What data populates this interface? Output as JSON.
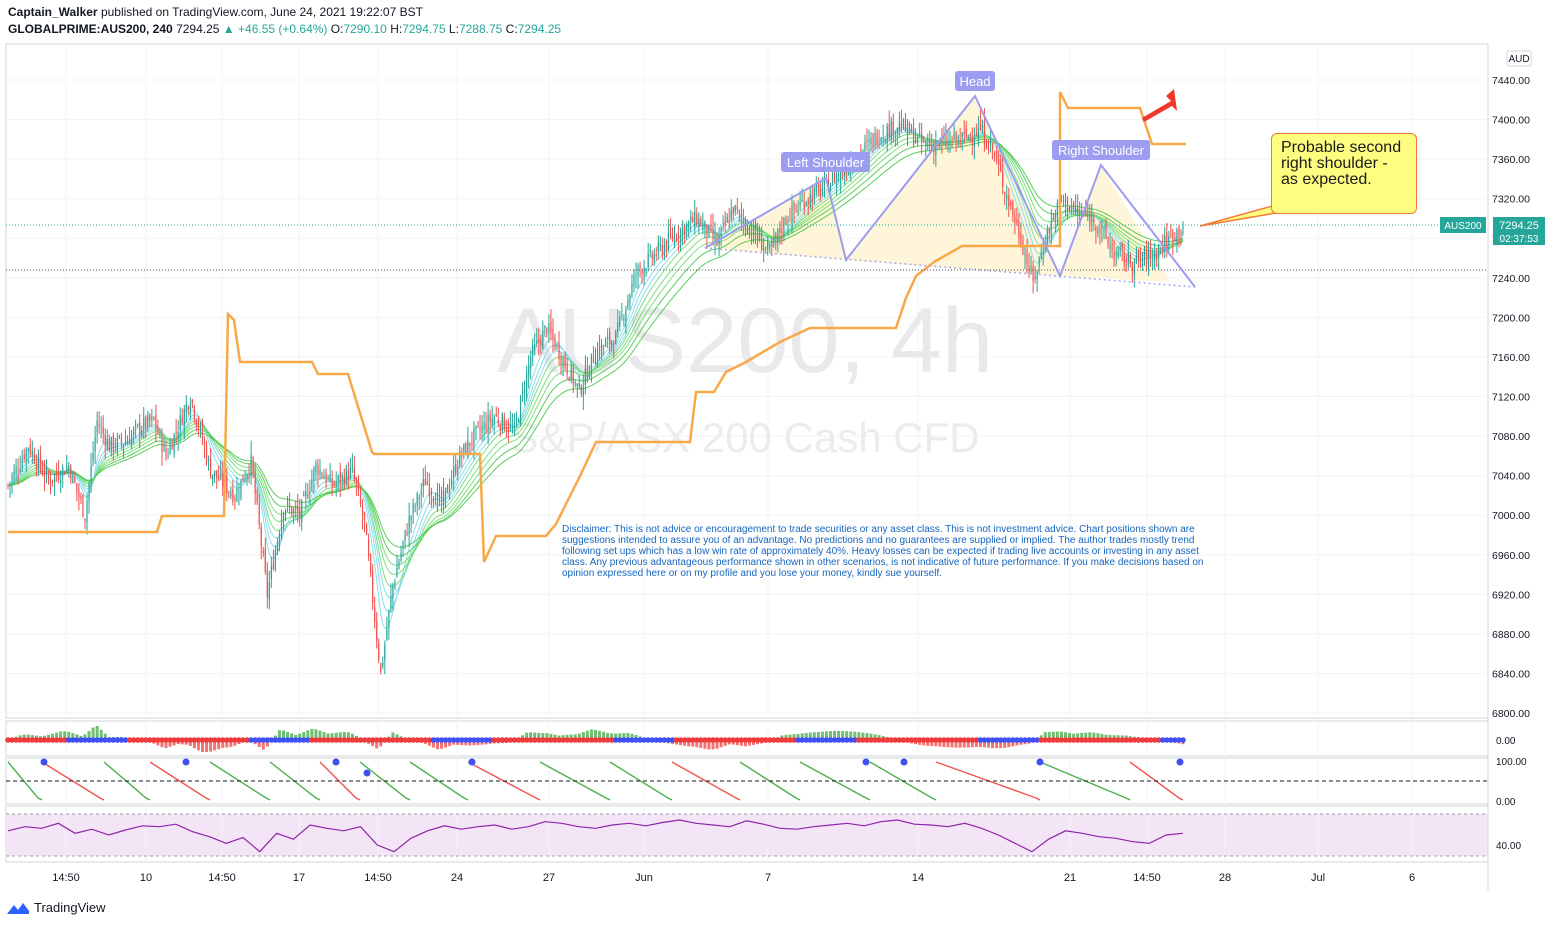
{
  "header": {
    "author": "Captain_Walker",
    "published": "published on TradingView.com, June 24, 2021 19:22:07 BST",
    "symbol": "GLOBALPRIME:AUS200, 240",
    "last": "7294.25",
    "change": "+46.55 (+0.64%)",
    "o_label": "O:",
    "o": "7290.10",
    "h_label": "H:",
    "h": "7294.75",
    "l_label": "L:",
    "l": "7288.75",
    "c_label": "C:",
    "c": "7294.25"
  },
  "watermark": {
    "symbol": "AUS200, 4h",
    "desc": "S&P/ASX 200 Cash CFD"
  },
  "currency": "AUD",
  "price_tag": {
    "name": "AUS200",
    "price": "7294.25",
    "countdown": "02:37:53"
  },
  "annotations": {
    "left_shoulder": "Left Shoulder",
    "head": "Head",
    "right_shoulder": "Right Shoulder",
    "callout": "Probable second right shoulder - as expected.",
    "disclaimer": "Disclaimer: This is not advice or encouragement to trade securities or any asset class. This is not investment advice. Chart positions shown are suggestions intended to assure you of an advantage. No predictions and no guarantees are supplied or implied. The author trades mostly trend following set ups which has a low win rate of approximately 40%. Heavy losses can be expected if trading live accounts or investing in any asset class. Any previous advantageous performance shown in other scenarios, is not indicative of future performance.  If you make decisions based on opinion expressed here or on my profile and you lose your money, kindly sue yourself."
  },
  "footer": {
    "brand": "TradingView"
  },
  "colors": {
    "up": "#26a69a",
    "down": "#ef5350",
    "stop_line": "#f7a94a",
    "pattern": "#9c9cf0",
    "pattern_fill": "#fff3cc",
    "arrow": "#f0392b",
    "osc_purple": "#8e24aa",
    "rsi_bg": "#f3e5f5"
  },
  "chart_data": [
    {
      "type": "candlestick",
      "title": "AUS200, 4h",
      "y_ticks": [
        "7440.00",
        "7400.00",
        "7360.00",
        "7320.00",
        "7280.00",
        "7240.00",
        "7200.00",
        "7160.00",
        "7120.00",
        "7080.00",
        "7040.00",
        "7000.00",
        "6960.00",
        "6920.00",
        "6880.00",
        "6840.00",
        "6800.00"
      ],
      "x_ticks": [
        "14:50",
        "10",
        "14:50",
        "17",
        "14:50",
        "24",
        "27",
        "Jun",
        "7",
        "14",
        "21",
        "14:50",
        "28",
        "Jul",
        "6"
      ],
      "ylim": [
        6790,
        7460
      ],
      "close_path": [
        [
          0,
          7030
        ],
        [
          10,
          7070
        ],
        [
          20,
          7035
        ],
        [
          30,
          7050
        ],
        [
          38,
          7000
        ],
        [
          44,
          7095
        ],
        [
          50,
          7070
        ],
        [
          58,
          7075
        ],
        [
          66,
          7090
        ],
        [
          72,
          7095
        ],
        [
          78,
          7060
        ],
        [
          90,
          7120
        ],
        [
          100,
          7045
        ],
        [
          112,
          7020
        ],
        [
          120,
          7055
        ],
        [
          128,
          6920
        ],
        [
          136,
          7010
        ],
        [
          144,
          7000
        ],
        [
          152,
          7050
        ],
        [
          160,
          7030
        ],
        [
          170,
          7045
        ],
        [
          176,
          6990
        ],
        [
          184,
          6840
        ],
        [
          190,
          6930
        ],
        [
          198,
          6995
        ],
        [
          206,
          7035
        ],
        [
          214,
          7010
        ],
        [
          222,
          7055
        ],
        [
          230,
          7080
        ],
        [
          240,
          7100
        ],
        [
          250,
          7085
        ],
        [
          258,
          7160
        ],
        [
          266,
          7190
        ],
        [
          272,
          7165
        ],
        [
          282,
          7125
        ],
        [
          290,
          7165
        ],
        [
          300,
          7180
        ],
        [
          310,
          7245
        ],
        [
          320,
          7265
        ],
        [
          330,
          7285
        ],
        [
          340,
          7300
        ],
        [
          350,
          7275
        ],
        [
          358,
          7310
        ],
        [
          366,
          7290
        ],
        [
          376,
          7265
        ],
        [
          384,
          7300
        ],
        [
          394,
          7320
        ],
        [
          402,
          7330
        ],
        [
          410,
          7345
        ],
        [
          420,
          7365
        ],
        [
          430,
          7385
        ],
        [
          440,
          7395
        ],
        [
          452,
          7375
        ],
        [
          460,
          7375
        ],
        [
          470,
          7380
        ],
        [
          480,
          7390
        ],
        [
          486,
          7370
        ],
        [
          492,
          7330
        ],
        [
          500,
          7280
        ],
        [
          506,
          7235
        ],
        [
          512,
          7280
        ],
        [
          520,
          7320
        ],
        [
          528,
          7305
        ],
        [
          536,
          7300
        ],
        [
          546,
          7265
        ],
        [
          556,
          7255
        ],
        [
          566,
          7265
        ],
        [
          576,
          7285
        ],
        [
          580,
          7294.25
        ]
      ],
      "last_price": 7294.25
    },
    {
      "type": "histogram",
      "name": "squeeze momentum",
      "y_ticks": [
        "0.00"
      ]
    },
    {
      "type": "line",
      "name": "stochastic",
      "y_ticks": [
        "100.00",
        "0.00"
      ]
    },
    {
      "type": "line",
      "name": "RSI",
      "y_ticks": [
        "40.00"
      ],
      "values": [
        55,
        60,
        58,
        64,
        52,
        57,
        50,
        56,
        61,
        60,
        63,
        54,
        48,
        40,
        47,
        30,
        52,
        45,
        62,
        58,
        55,
        60,
        38,
        30,
        46,
        55,
        61,
        57,
        60,
        62,
        57,
        60,
        66,
        64,
        60,
        58,
        62,
        64,
        61,
        65,
        68,
        64,
        62,
        60,
        67,
        63,
        58,
        57,
        60,
        62,
        64,
        61,
        66,
        68,
        63,
        62,
        60,
        64,
        58,
        50,
        40,
        30,
        45,
        55,
        52,
        48,
        46,
        42,
        40,
        50,
        52
      ]
    }
  ]
}
